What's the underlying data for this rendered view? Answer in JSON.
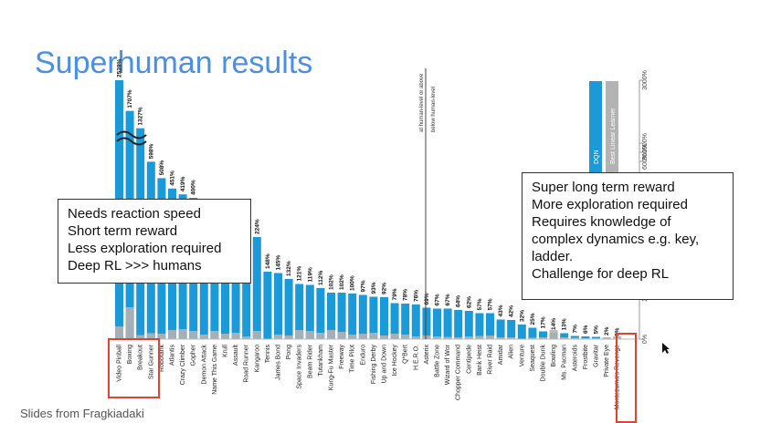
{
  "title": "Superhuman results",
  "credit": "Slides from Fragkiadaki",
  "callouts": {
    "left": [
      "Needs reaction speed",
      "Short term reward",
      "Less exploration required",
      "Deep RL >>> humans"
    ],
    "right": [
      "Super long term reward",
      "More exploration required",
      "Requires knowledge of",
      "complex dynamics e.g. key,",
      "ladder.",
      "Challenge for deep RL"
    ]
  },
  "chart_data": {
    "type": "bar",
    "title": "",
    "categories": [
      "Video Pinball",
      "Boxing",
      "Breakout",
      "Star Gunner",
      "Robotank",
      "Atlantis",
      "Crazy Climber",
      "Gopher",
      "Demon Attack",
      "Name This Game",
      "Krull",
      "Assault",
      "Road Runner",
      "Kangaroo",
      "Tennis",
      "James Bond",
      "Pong",
      "Space Invaders",
      "Beam Rider",
      "Tutankham",
      "Kung-Fu Master",
      "Freeway",
      "Time Pilot",
      "Enduro",
      "Fishing Derby",
      "Up and Down",
      "Ice Hockey",
      "Q*Bert",
      "H.E.R.O.",
      "Asterix",
      "Battle Zone",
      "Wizard of Wor",
      "Chopper Command",
      "Centipede",
      "Bank Heist",
      "River Raid",
      "Amidar",
      "Alien",
      "Venture",
      "Seaquest",
      "Double Dunk",
      "Bowling",
      "Ms. Pacman",
      "Asteroids",
      "Frostbite",
      "Gravitar",
      "Private Eye",
      "Montezuma's Revenge"
    ],
    "value_labels": [
      "2539%",
      "1707%",
      "1327%",
      "598%",
      "508%",
      "451%",
      "419%",
      "400%",
      "",
      "",
      "",
      "",
      "",
      "224%",
      "148%",
      "145%",
      "132%",
      "121%",
      "119%",
      "112%",
      "102%",
      "102%",
      "100%",
      "97%",
      "93%",
      "92%",
      "79%",
      "78%",
      "76%",
      "69%",
      "67%",
      "67%",
      "64%",
      "62%",
      "57%",
      "57%",
      "43%",
      "42%",
      "32%",
      "25%",
      "17%",
      "14%",
      "13%",
      "7%",
      "6%",
      "5%",
      "2%",
      "0%"
    ],
    "series": [
      {
        "name": "DQN",
        "color": "#1a9ad9",
        "values": [
          2539,
          1707,
          1327,
          598,
          508,
          451,
          419,
          400,
          300,
          280,
          260,
          250,
          230,
          224,
          148,
          145,
          132,
          121,
          119,
          112,
          102,
          102,
          100,
          97,
          93,
          92,
          79,
          78,
          76,
          69,
          67,
          67,
          64,
          62,
          57,
          57,
          43,
          42,
          32,
          25,
          17,
          14,
          13,
          7,
          6,
          5,
          2,
          0
        ]
      },
      {
        "name": "Best Linear Learner",
        "color": "#b3b3b3",
        "values": [
          28,
          70,
          9,
          13,
          12,
          20,
          22,
          18,
          10,
          18,
          12,
          14,
          6,
          18,
          0,
          10,
          8,
          20,
          18,
          14,
          20,
          16,
          10,
          12,
          14,
          8,
          12,
          10,
          6,
          8,
          6,
          5,
          4,
          6,
          7,
          8,
          4,
          4,
          0,
          3,
          4,
          20,
          4,
          3,
          2,
          2,
          4,
          6
        ]
      }
    ],
    "ytick_labels": [
      "3000%",
      "1000%",
      "800%",
      "600%",
      "400%",
      "300%",
      "200%",
      "100%",
      "0%"
    ],
    "threshold_labels": [
      "at human-level or above",
      "below human-level"
    ]
  }
}
